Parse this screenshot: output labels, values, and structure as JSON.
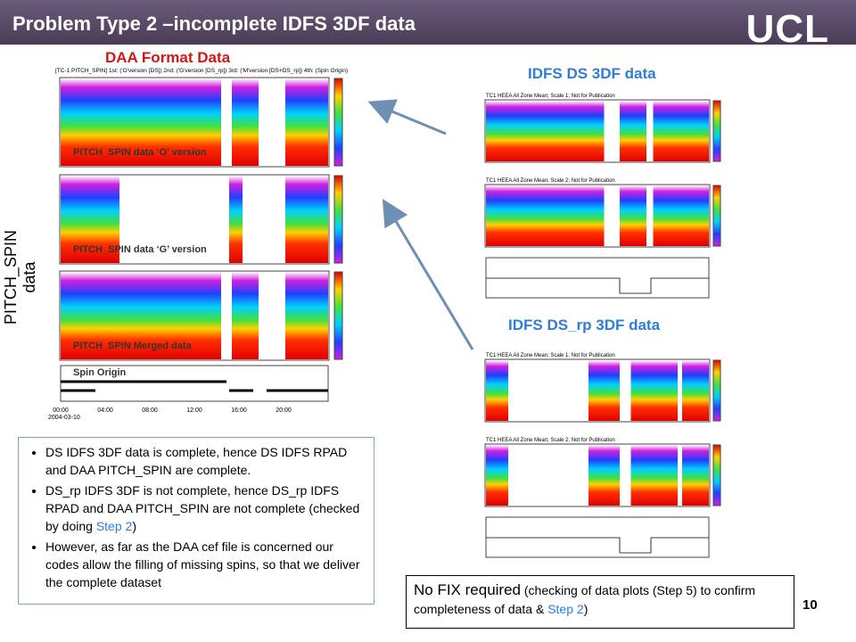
{
  "header": {
    "title": "Problem Type 2 –incomplete IDFS 3DF data",
    "logo": "UCL",
    "page_number": "10"
  },
  "labels": {
    "daa": "DAA Format Data",
    "ds": "IDFS DS 3DF data",
    "ds_rp": "IDFS DS_rp 3DF data",
    "side": "PITCH_SPIN data"
  },
  "daa_plot": {
    "caption": "[TC-1 PITCH_SPIN] 1st: ('O'version [DS]) 2nd: ('G'version [DS_rp]) 3rd: ('M'version [DS+DS_rp]) 4th: (Spin Origin)",
    "panels": [
      "PITCH_SPIN data ‘O’ version",
      "PITCH_SPIN data ‘G’ version",
      "PITCH_SPIN Merged data",
      "Spin Origin"
    ],
    "x_ticks": [
      "00:00",
      "04:00",
      "08:00",
      "12:00",
      "16:00",
      "20:00"
    ],
    "date": "2004-03-10"
  },
  "ds_plot": {
    "titles": [
      "TC1 HEEA All Zone Mean; Scale 1; Not for Publication",
      "TC1 HEEA All Zone Mean; Scale 2; Not for Publication"
    ]
  },
  "ds_rp_plot": {
    "titles": [
      "TC1 HEEA All Zone Mean; Scale 1; Not for Publication",
      "TC1 HEEA All Zone Mean; Scale 2; Not for Publication"
    ]
  },
  "bullets": [
    {
      "parts": [
        "DS IDFS 3DF data is complete, hence DS IDFS RPAD and DAA PITCH_SPIN are complete."
      ]
    },
    {
      "parts": [
        "DS_rp IDFS 3DF is not complete, hence DS_rp IDFS RPAD and DAA PITCH_SPIN are not complete (checked by doing ",
        "Step 2",
        ")"
      ]
    },
    {
      "parts": [
        "However, as far as the DAA cef file is concerned our codes allow the filling of  missing spins, so that we deliver the complete dataset"
      ]
    }
  ],
  "note": {
    "parts": [
      "No FIX required",
      " (checking of data plots (Step 5) to confirm completeness of data & ",
      "Step 2",
      ")"
    ]
  }
}
